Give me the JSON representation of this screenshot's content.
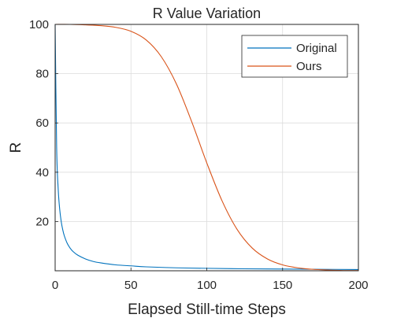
{
  "chart_data": {
    "type": "line",
    "title": "R Value Variation",
    "xlabel": "Elapsed Still-time Steps",
    "ylabel": "R",
    "xlim": [
      0,
      200
    ],
    "ylim": [
      0,
      100
    ],
    "xticks": [
      0,
      50,
      100,
      150,
      200
    ],
    "yticks": [
      20,
      40,
      60,
      80,
      100
    ],
    "grid": true,
    "legend": {
      "placement": "top-right",
      "boxed": true
    },
    "series": [
      {
        "name": "Original",
        "color": "#0072BD",
        "x": [
          0,
          1,
          2,
          3,
          4,
          5,
          6,
          8,
          10,
          12,
          15,
          20,
          25,
          30,
          40,
          50,
          60,
          80,
          100,
          125,
          150,
          175,
          200
        ],
        "y": [
          100,
          50,
          33.3,
          25,
          20,
          16.7,
          14.3,
          11.1,
          9.1,
          7.7,
          6.3,
          4.8,
          3.8,
          3.2,
          2.4,
          2.0,
          1.6,
          1.2,
          1.0,
          0.8,
          0.7,
          0.6,
          0.5
        ]
      },
      {
        "name": "Ours",
        "color": "#D95319",
        "x": [
          0,
          10,
          20,
          30,
          40,
          50,
          60,
          70,
          80,
          90,
          100,
          110,
          120,
          130,
          140,
          150,
          160,
          170,
          180,
          190,
          200
        ],
        "y": [
          100,
          100,
          99.8,
          99.5,
          98.8,
          97.2,
          93.7,
          86.9,
          75.8,
          60.6,
          43.8,
          28.5,
          16.8,
          9.2,
          4.8,
          2.4,
          1.2,
          0.6,
          0.3,
          0.1,
          0.1
        ]
      }
    ]
  }
}
